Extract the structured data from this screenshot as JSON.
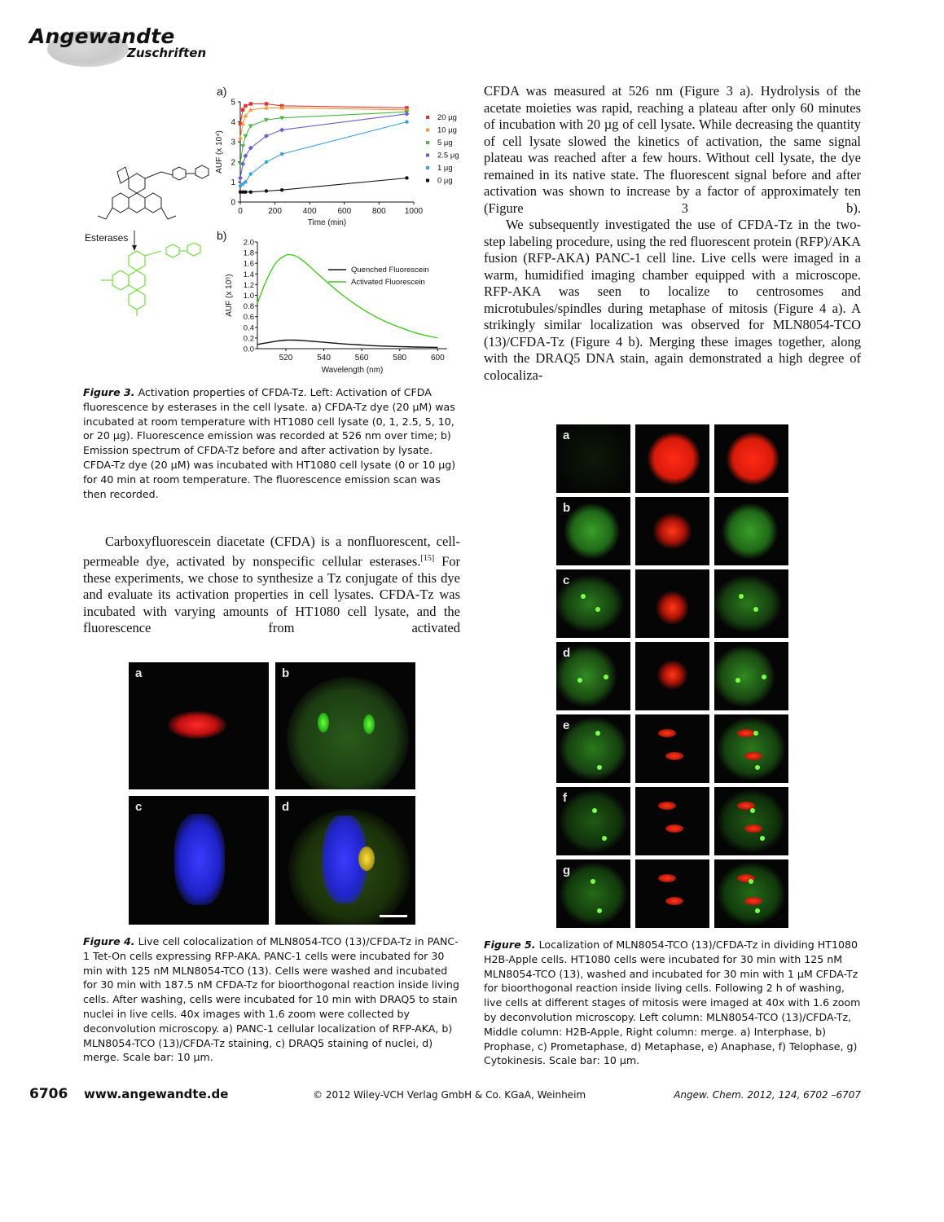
{
  "header": {
    "journal": "Angewandte",
    "section": "Zuschriften"
  },
  "figure3": {
    "panel_a_label": "a)",
    "panel_b_label": "b)",
    "enzyme_label": "Esterases",
    "caption_label": "Figure 3.",
    "caption_text": "Activation properties of CFDA-Tz. Left: Activation of CFDA fluorescence by esterases in the cell lysate. a) CFDA-Tz dye (20 µM) was incubated at room temperature with HT1080 cell lysate (0, 1, 2.5, 5, 10, or 20 µg). Fluorescence emission was recorded at 526 nm over time; b) Emission spectrum of CFDA-Tz before and after activation by lysate. CFDA-Tz dye (20 µM) was incubated with HT1080 cell lysate (0 or 10 µg) for 40 min at room temperature. The fluorescence emission scan was then recorded."
  },
  "chart_data": [
    {
      "type": "scatter",
      "panel": "a)",
      "xlabel": "Time (min)",
      "ylabel": "AUF (x 10⁴)",
      "xlim": [
        0,
        1000
      ],
      "ylim": [
        0,
        5
      ],
      "xticks": [
        "0",
        "200",
        "400",
        "600",
        "800",
        "1000"
      ],
      "yticks": [
        "0",
        "1",
        "2",
        "3",
        "4",
        "5"
      ],
      "legend_position": "right",
      "series": [
        {
          "name": "20 µg",
          "color": "#e8322c",
          "marker": "square",
          "x": [
            0,
            15,
            30,
            60,
            150,
            240,
            960
          ],
          "y": [
            3.9,
            4.6,
            4.8,
            4.9,
            4.9,
            4.8,
            4.7
          ]
        },
        {
          "name": "10 µg",
          "color": "#f39a3a",
          "marker": "triangle",
          "x": [
            0,
            15,
            30,
            60,
            150,
            240,
            960
          ],
          "y": [
            3.2,
            3.9,
            4.3,
            4.6,
            4.7,
            4.7,
            4.6
          ]
        },
        {
          "name": "5 µg",
          "color": "#44b843",
          "marker": "triangle-down",
          "x": [
            0,
            15,
            30,
            60,
            150,
            240,
            960
          ],
          "y": [
            1.9,
            2.8,
            3.3,
            3.8,
            4.1,
            4.2,
            4.5
          ]
        },
        {
          "name": "2.5 µg",
          "color": "#6a5fc9",
          "marker": "diamond",
          "x": [
            0,
            15,
            30,
            60,
            150,
            240,
            960
          ],
          "y": [
            1.2,
            1.9,
            2.3,
            2.7,
            3.3,
            3.6,
            4.4
          ]
        },
        {
          "name": "1 µg",
          "color": "#3aa0e0",
          "marker": "circle",
          "x": [
            0,
            15,
            30,
            60,
            150,
            240,
            960
          ],
          "y": [
            0.8,
            0.9,
            1.0,
            1.4,
            2.0,
            2.4,
            4.0
          ]
        },
        {
          "name": "0 µg",
          "color": "#111111",
          "marker": "circle",
          "x": [
            0,
            15,
            30,
            60,
            150,
            240,
            960
          ],
          "y": [
            0.5,
            0.5,
            0.5,
            0.5,
            0.55,
            0.6,
            1.2
          ]
        }
      ]
    },
    {
      "type": "line",
      "panel": "b)",
      "xlabel": "Wavelength (nm)",
      "ylabel": "AUF (x 10⁵)",
      "xlim": [
        505,
        605
      ],
      "ylim": [
        0,
        2.0
      ],
      "xticks": [
        "520",
        "540",
        "560",
        "580",
        "600"
      ],
      "yticks": [
        "0.0",
        "0.2",
        "0.4",
        "0.6",
        "0.8",
        "1.0",
        "1.2",
        "1.4",
        "1.6",
        "1.8",
        "2.0"
      ],
      "legend_position": "top-right",
      "series": [
        {
          "name": "Quenched Fluorescein",
          "color": "#111111",
          "x": [
            505,
            510,
            515,
            520,
            525,
            530,
            540,
            550,
            560,
            570,
            580,
            590,
            600
          ],
          "y": [
            0.08,
            0.11,
            0.14,
            0.16,
            0.16,
            0.15,
            0.12,
            0.09,
            0.07,
            0.05,
            0.04,
            0.03,
            0.025
          ]
        },
        {
          "name": "Activated Fluorescein",
          "color": "#44cc22",
          "x": [
            505,
            510,
            515,
            520,
            522,
            525,
            530,
            540,
            550,
            560,
            570,
            580,
            590,
            600
          ],
          "y": [
            0.85,
            1.3,
            1.62,
            1.75,
            1.76,
            1.74,
            1.62,
            1.3,
            1.0,
            0.75,
            0.55,
            0.4,
            0.28,
            0.2
          ]
        }
      ]
    }
  ],
  "right_col_text": {
    "p1": "CFDA was measured at 526 nm (Figure 3 a). Hydrolysis of the acetate moieties was rapid, reaching a plateau after only 60 minutes of incubation with 20 µg of cell lysate. While decreasing the quantity of cell lysate slowed the kinetics of activation, the same signal plateau was reached after a few hours. Without cell lysate, the dye remained in its native state. The fluorescent signal before and after activation was shown to increase by a factor of approximately ten (Figure 3 b).",
    "p2": "We subsequently investigated the use of CFDA-Tz in the two-step labeling procedure, using the red fluorescent protein (RFP)/AKA fusion (RFP-AKA) PANC-1 cell line. Live cells were imaged in a warm, humidified imaging chamber equipped with a microscope. RFP-AKA was seen to localize to centrosomes and microtubules/spindles during metaphase of mitosis (Figure 4 a). A strikingly similar localization was observed for MLN8054-TCO (13)/CFDA-Tz (Figure 4 b). Merging these images together, along with the DRAQ5 DNA stain, again demonstrated a high degree of colocaliza-"
  },
  "left_col_text": {
    "p1_a": "Carboxyfluorescein diacetate (CFDA) is a nonfluorescent, cell-permeable dye, activated by nonspecific cellular esterases.",
    "p1_ref": "[15]",
    "p1_b": " For these experiments, we chose to synthesize a Tz conjugate of this dye and evaluate its activation properties in cell lysates. CFDA-Tz was incubated with varying amounts of HT1080 cell lysate, and the fluorescence from activated"
  },
  "figure4": {
    "labels": [
      "a",
      "b",
      "c",
      "d"
    ],
    "caption_label": "Figure 4.",
    "caption_text": "Live cell colocalization of MLN8054-TCO (13)/CFDA-Tz in PANC-1 Tet-On cells expressing RFP-AKA. PANC-1 cells were incubated for 30 min with 125 nM MLN8054-TCO (13). Cells were washed and incubated for 30 min with 187.5 nM CFDA-Tz for bioorthogonal reaction inside living cells. After washing, cells were incubated for 10 min with DRAQ5 to stain nuclei in live cells. 40x images with 1.6 zoom were collected by deconvolution microscopy. a) PANC-1 cellular localization of RFP-AKA, b) MLN8054-TCO (13)/CFDA-Tz staining, c) DRAQ5 staining of nuclei, d) merge. Scale bar: 10 µm."
  },
  "figure5": {
    "row_labels": [
      "a",
      "b",
      "c",
      "d",
      "e",
      "f",
      "g"
    ],
    "caption_label": "Figure 5.",
    "caption_text": "Localization of MLN8054-TCO (13)/CFDA-Tz in dividing HT1080 H2B-Apple cells. HT1080 cells were incubated for 30 min with 125 nM MLN8054-TCO (13), washed and incubated for 30 min with 1 µM CFDA-Tz for bioorthogonal reaction inside living cells. Following 2 h of washing, live cells at different stages of mitosis were imaged at 40x with 1.6 zoom by deconvolution microscopy. Left column: MLN8054-TCO (13)/CFDA-Tz, Middle column: H2B-Apple, Right column: merge. a) Interphase, b) Prophase, c) Prometaphase, d) Metaphase, e) Anaphase, f) Telophase, g) Cytokinesis. Scale bar: 10 µm."
  },
  "footer": {
    "page_number": "6706",
    "website": "www.angewandte.de",
    "copyright": "© 2012 Wiley-VCH Verlag GmbH & Co. KGaA, Weinheim",
    "citation": "Angew. Chem. 2012, 124, 6702 –6707"
  }
}
